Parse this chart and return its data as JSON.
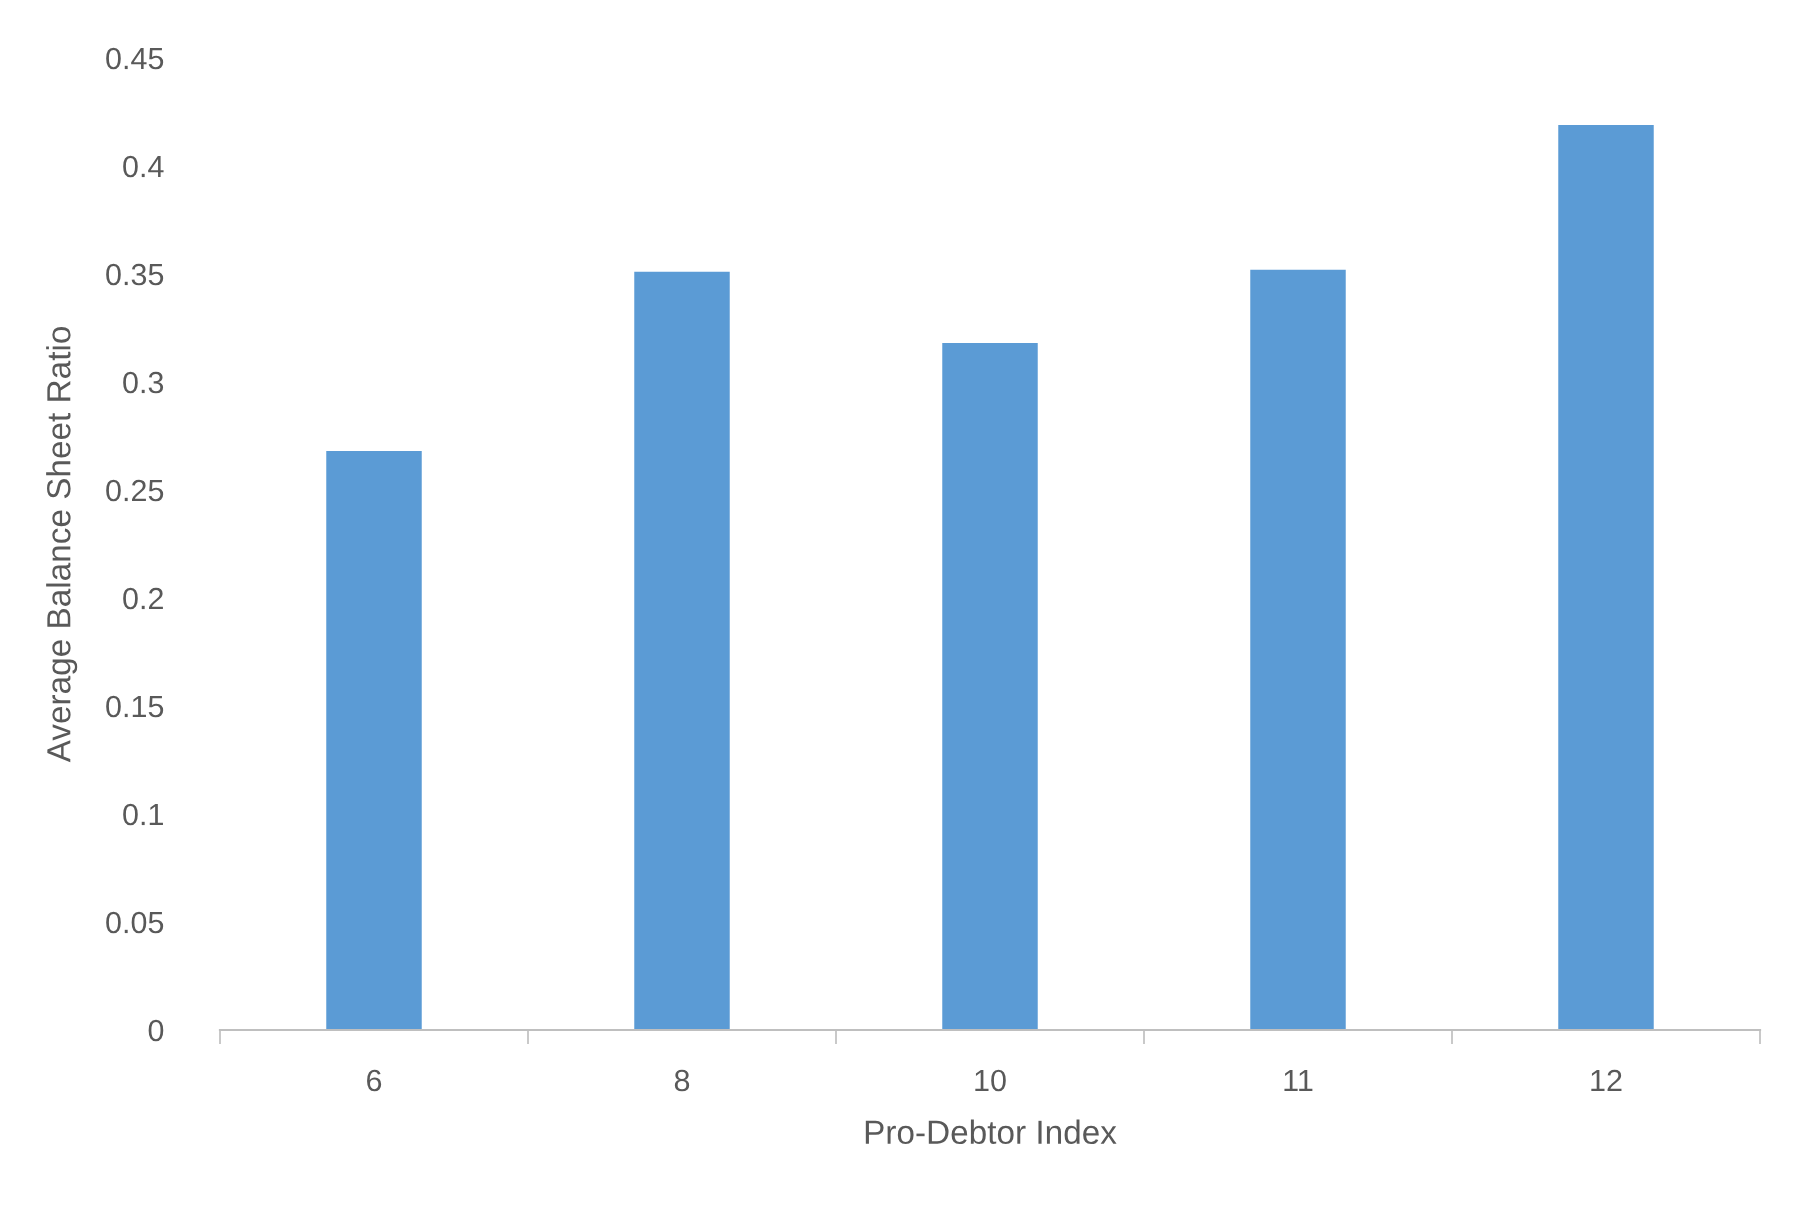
{
  "chart_data": {
    "type": "bar",
    "xlabel": "Pro-Debtor Index",
    "ylabel": "Average Balance Sheet Ratio",
    "categories": [
      "6",
      "8",
      "10",
      "11",
      "12"
    ],
    "values": [
      0.268,
      0.351,
      0.318,
      0.352,
      0.419
    ],
    "color": "#5b9bd5",
    "ylim": [
      0,
      0.45
    ],
    "yticks": [
      0,
      {
        "value": 0.05,
        "label": "0.05"
      },
      {
        "value": 0.1,
        "label": "0.1"
      },
      {
        "value": 0.15,
        "label": "0.15"
      },
      {
        "value": 0.2,
        "label": "0.2"
      },
      {
        "value": 0.25,
        "label": "0.25"
      },
      {
        "value": 0.3,
        "label": "0.3"
      },
      {
        "value": 0.35,
        "label": "0.35"
      },
      {
        "value": 0.4,
        "label": "0.4"
      },
      {
        "value": 0.45,
        "label": "0.45"
      }
    ],
    "grid": false,
    "legend": false
  }
}
